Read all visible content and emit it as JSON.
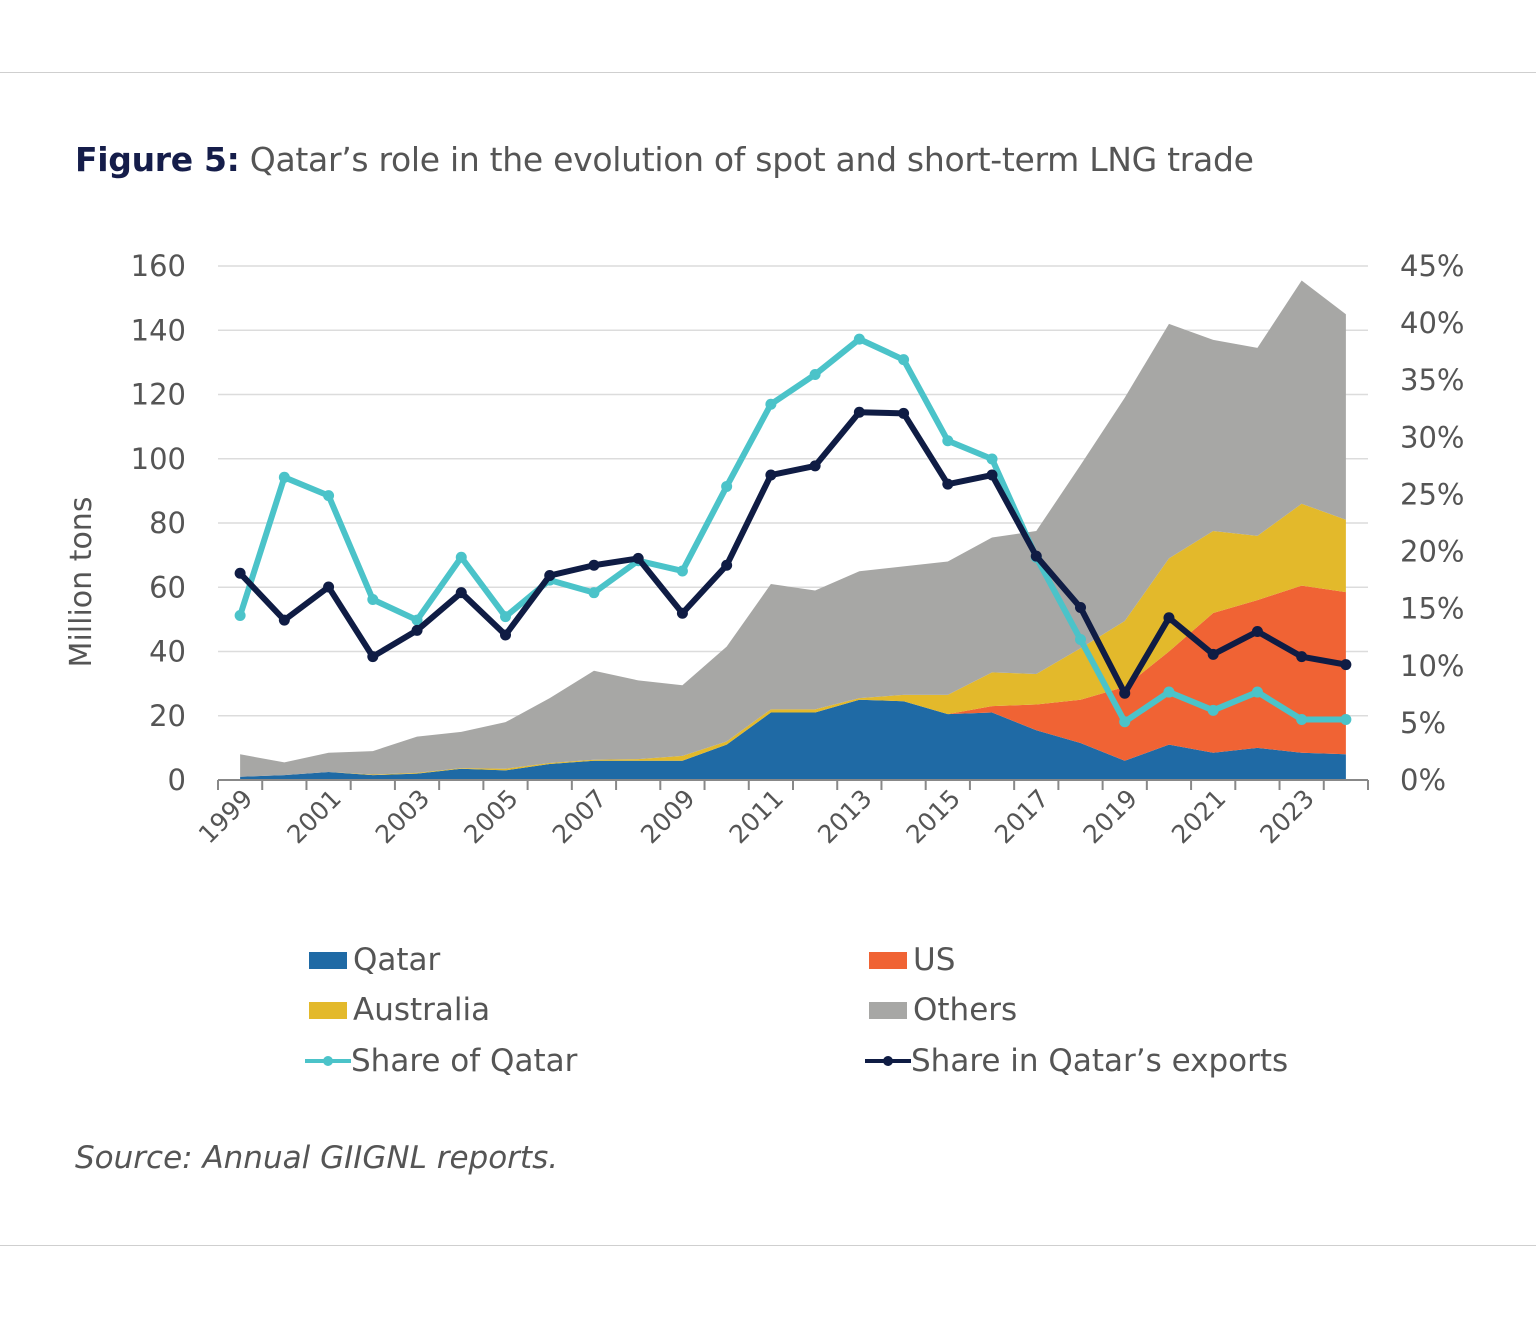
{
  "title": {
    "label": "Figure 5:",
    "text": "Qatar’s role in the evolution of spot and short-term LNG trade"
  },
  "source": "Source: Annual GIIGNL reports.",
  "chart_data": {
    "type": "area",
    "stacked": true,
    "x": [
      1999,
      2000,
      2001,
      2002,
      2003,
      2004,
      2005,
      2006,
      2007,
      2008,
      2009,
      2010,
      2011,
      2012,
      2013,
      2014,
      2015,
      2016,
      2017,
      2018,
      2019,
      2020,
      2021,
      2022,
      2023,
      2024
    ],
    "x_tick_labels": [
      "1999",
      "2001",
      "2003",
      "2005",
      "2007",
      "2009",
      "2011",
      "2013",
      "2015",
      "2017",
      "2019",
      "2021",
      "2023"
    ],
    "ylabel": "Million tons",
    "ylim": [
      0,
      160
    ],
    "y_ticks": [
      "0",
      "20",
      "40",
      "60",
      "80",
      "100",
      "120",
      "140",
      "160"
    ],
    "y2lim": [
      0,
      45
    ],
    "y2_ticks": [
      "0%",
      "5%",
      "10%",
      "15%",
      "20%",
      "25%",
      "30%",
      "35%",
      "40%",
      "45%"
    ],
    "grid": true,
    "legend_position": "bottom",
    "series": [
      {
        "name": "Qatar",
        "kind": "area",
        "color": "#1f6aa5",
        "values": [
          1,
          1.5,
          2.5,
          1.5,
          2,
          3.5,
          3,
          5,
          6,
          6,
          6,
          11,
          21,
          21,
          25,
          24.5,
          20.5,
          21,
          15.5,
          11.5,
          6,
          11,
          8.5,
          10,
          8.5,
          8
        ]
      },
      {
        "name": "US",
        "kind": "area",
        "color": "#f06334",
        "values": [
          0,
          0,
          0,
          0,
          0,
          0,
          0,
          0,
          0,
          0,
          0,
          0,
          0,
          0,
          0,
          0,
          0,
          2,
          8,
          13.5,
          23,
          29,
          43.5,
          46,
          52,
          50.5
        ]
      },
      {
        "name": "Australia",
        "kind": "area",
        "color": "#e3b92b",
        "values": [
          0,
          0,
          0,
          0.2,
          0.2,
          0.2,
          0.5,
          0.3,
          0.3,
          0.5,
          1.5,
          1,
          1,
          1,
          0.5,
          2,
          6,
          10.5,
          9.5,
          16,
          20.5,
          29,
          25.5,
          20,
          25.5,
          22.5
        ]
      },
      {
        "name": "Others",
        "kind": "area",
        "color": "#a7a7a5",
        "values": [
          7,
          4,
          6,
          7.3,
          11.3,
          11.3,
          14.5,
          20.2,
          27.7,
          24.5,
          22,
          29.5,
          39,
          37,
          39.5,
          40,
          41.5,
          42,
          44.5,
          57,
          69.5,
          73,
          59.5,
          58.5,
          69.5,
          64
        ]
      },
      {
        "name": "Share of Qatar",
        "kind": "line",
        "axis": "right",
        "color": "#4bc3c9",
        "values": [
          14.4,
          26.5,
          24.9,
          15.8,
          14.0,
          19.5,
          14.3,
          17.5,
          16.4,
          19.2,
          18.3,
          25.7,
          32.9,
          35.5,
          38.6,
          36.8,
          29.7,
          28.1,
          19.5,
          12.3,
          5.1,
          7.7,
          6.1,
          7.7,
          5.3,
          5.3
        ]
      },
      {
        "name": "Share in Qatar’s exports",
        "kind": "line",
        "axis": "right",
        "color": "#0f1c44",
        "values": [
          18.1,
          14.0,
          16.9,
          10.8,
          13.1,
          16.4,
          12.7,
          17.9,
          18.8,
          19.4,
          14.6,
          18.8,
          26.7,
          27.5,
          32.2,
          32.1,
          25.9,
          26.7,
          19.6,
          15.1,
          7.6,
          14.2,
          11.0,
          13.0,
          10.8,
          10.1
        ]
      }
    ]
  }
}
